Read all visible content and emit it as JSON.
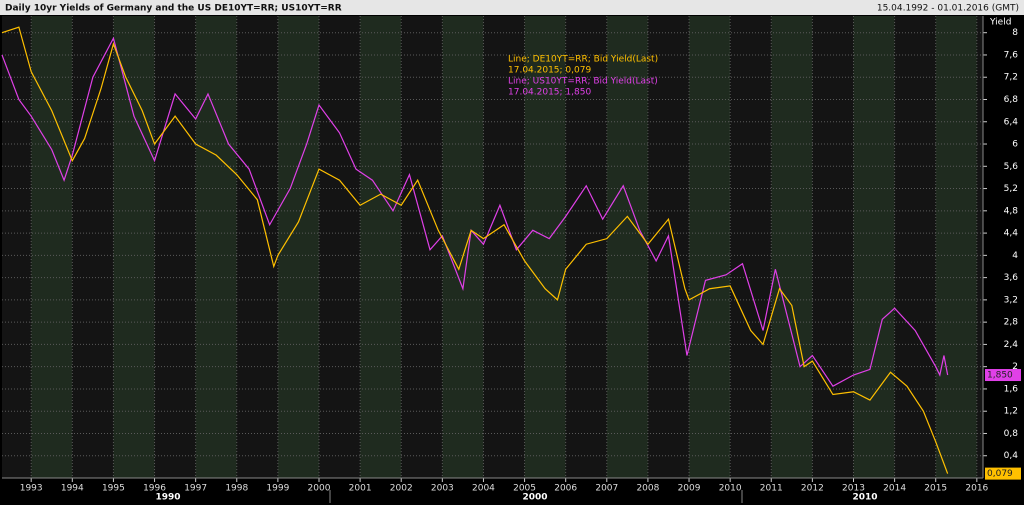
{
  "chart_data": {
    "type": "line",
    "title": "Daily 10yr Yields of Germany and the US DE10YT=RR; US10YT=RR",
    "subtitle": "15.04.1992 - 01.01.2016 (GMT)",
    "y_label": "Yield",
    "annotations": [
      "Line; DE10YT=RR; Bid Yield(Last)",
      "17.04.2015; 0,079",
      "Line; US10YT=RR; Bid Yield(Last)",
      "17.04.2015; 1,850"
    ],
    "decade_labels": [
      "1990",
      "2000",
      "2010"
    ],
    "xlim": [
      1992.29,
      2016.15
    ],
    "xticks": [
      1993,
      1994,
      1995,
      1996,
      1997,
      1998,
      1999,
      2000,
      2001,
      2002,
      2003,
      2004,
      2005,
      2006,
      2007,
      2008,
      2009,
      2010,
      2011,
      2012,
      2013,
      2014,
      2015,
      2016
    ],
    "ylim": [
      0,
      8.3
    ],
    "yticks": [
      {
        "value": 0.4,
        "label": "0,4"
      },
      {
        "value": 0.8,
        "label": "0,8"
      },
      {
        "value": 1.2,
        "label": "1,2"
      },
      {
        "value": 1.6,
        "label": "1,6"
      },
      2,
      {
        "value": 2.4,
        "label": "2,4"
      },
      {
        "value": 2.8,
        "label": "2,8"
      },
      {
        "value": 3.2,
        "label": "3,2"
      },
      {
        "value": 3.6,
        "label": "3,6"
      },
      4,
      {
        "value": 4.4,
        "label": "4,4"
      },
      {
        "value": 4.8,
        "label": "4,8"
      },
      {
        "value": 5.2,
        "label": "5,2"
      },
      {
        "value": 5.6,
        "label": "5,6"
      },
      6,
      {
        "value": 6.4,
        "label": "6,4"
      },
      {
        "value": 6.8,
        "label": "6,8"
      },
      {
        "value": 7.2,
        "label": "7,2"
      },
      {
        "value": 7.6,
        "label": "7,6"
      },
      8
    ],
    "grid": true,
    "series": [
      {
        "name": "DE10YT=RR",
        "color": "#ffc000",
        "x": [
          1992.29,
          1992.7,
          1993.0,
          1993.5,
          1994.0,
          1994.3,
          1994.7,
          1995.0,
          1995.3,
          1995.7,
          1996.0,
          1996.5,
          1997.0,
          1997.5,
          1998.0,
          1998.5,
          1998.9,
          1999.0,
          1999.5,
          2000.0,
          2000.5,
          2001.0,
          2001.5,
          2002.0,
          2002.4,
          2002.9,
          2003.4,
          2003.7,
          2004.0,
          2004.5,
          2005.0,
          2005.5,
          2005.8,
          2006.0,
          2006.5,
          2007.0,
          2007.5,
          2008.0,
          2008.5,
          2008.9,
          2009.0,
          2009.5,
          2010.0,
          2010.5,
          2010.8,
          2011.2,
          2011.5,
          2011.8,
          2012.0,
          2012.5,
          2013.0,
          2013.4,
          2013.9,
          2014.3,
          2014.7,
          2015.0,
          2015.29
        ],
        "values": [
          8.0,
          8.1,
          7.3,
          6.6,
          5.7,
          6.1,
          7.0,
          7.8,
          7.2,
          6.6,
          6.0,
          6.5,
          6.0,
          5.8,
          5.45,
          5.0,
          3.8,
          4.0,
          4.6,
          5.55,
          5.35,
          4.9,
          5.1,
          4.9,
          5.35,
          4.45,
          3.75,
          4.45,
          4.3,
          4.55,
          3.9,
          3.4,
          3.2,
          3.75,
          4.2,
          4.3,
          4.7,
          4.2,
          4.65,
          3.4,
          3.2,
          3.4,
          3.45,
          2.65,
          2.4,
          3.4,
          3.1,
          2.0,
          2.1,
          1.5,
          1.55,
          1.4,
          1.9,
          1.65,
          1.2,
          0.65,
          0.079
        ],
        "last": {
          "value": 0.079,
          "label": "0,079"
        }
      },
      {
        "name": "US10YT=RR",
        "color": "#e040e8",
        "x": [
          1992.29,
          1992.7,
          1993.0,
          1993.5,
          1993.8,
          1994.0,
          1994.5,
          1995.0,
          1995.5,
          1996.0,
          1996.5,
          1997.0,
          1997.3,
          1997.8,
          1998.3,
          1998.8,
          1999.3,
          1999.7,
          2000.0,
          2000.5,
          2000.9,
          2001.3,
          2001.8,
          2002.2,
          2002.7,
          2003.0,
          2003.5,
          2003.7,
          2004.0,
          2004.4,
          2004.8,
          2005.2,
          2005.6,
          2006.0,
          2006.5,
          2006.9,
          2007.4,
          2007.8,
          2008.2,
          2008.5,
          2008.95,
          2009.4,
          2009.9,
          2010.3,
          2010.8,
          2011.1,
          2011.7,
          2012.0,
          2012.5,
          2013.0,
          2013.4,
          2013.7,
          2014.0,
          2014.5,
          2015.0,
          2015.1,
          2015.2,
          2015.29
        ],
        "values": [
          7.6,
          6.8,
          6.5,
          5.9,
          5.35,
          5.8,
          7.2,
          7.9,
          6.5,
          5.7,
          6.9,
          6.45,
          6.9,
          6.0,
          5.55,
          4.55,
          5.2,
          6.0,
          6.7,
          6.2,
          5.55,
          5.35,
          4.8,
          5.45,
          4.1,
          4.35,
          3.4,
          4.45,
          4.2,
          4.9,
          4.1,
          4.45,
          4.3,
          4.7,
          5.25,
          4.65,
          5.25,
          4.45,
          3.9,
          4.35,
          2.2,
          3.55,
          3.65,
          3.85,
          2.65,
          3.75,
          2.0,
          2.2,
          1.65,
          1.85,
          1.95,
          2.85,
          3.05,
          2.65,
          2.0,
          1.85,
          2.2,
          1.85
        ],
        "last": {
          "value": 1.85,
          "label": "1,850"
        }
      }
    ]
  }
}
